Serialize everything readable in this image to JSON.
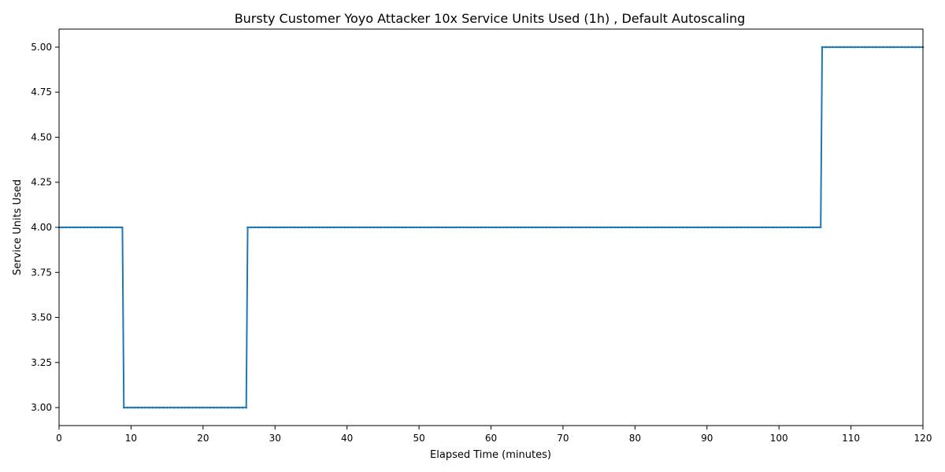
{
  "chart_data": {
    "type": "line",
    "title": "Bursty Customer Yoyo Attacker 10x Service Units Used (1h) , Default Autoscaling",
    "xlabel": "Elapsed Time (minutes)",
    "ylabel": "Service Units Used",
    "xlim": [
      0,
      120
    ],
    "ylim": [
      2.9,
      5.1
    ],
    "xticks": [
      0,
      10,
      20,
      30,
      40,
      50,
      60,
      70,
      80,
      90,
      100,
      110,
      120
    ],
    "yticks": [
      3.0,
      3.25,
      3.5,
      3.75,
      4.0,
      4.25,
      4.5,
      4.75,
      5.0
    ],
    "ytick_labels": [
      "3.00",
      "3.25",
      "3.50",
      "3.75",
      "4.00",
      "4.25",
      "4.50",
      "4.75",
      "5.00"
    ],
    "grid": false,
    "legend": "none",
    "color": "#1f77b4",
    "series": [
      {
        "x": [
          0,
          8.8,
          9.0,
          26.0,
          26.2,
          105.8,
          106.0,
          120
        ],
        "y": [
          4,
          4,
          3,
          3,
          4,
          4,
          5,
          5
        ]
      }
    ]
  }
}
